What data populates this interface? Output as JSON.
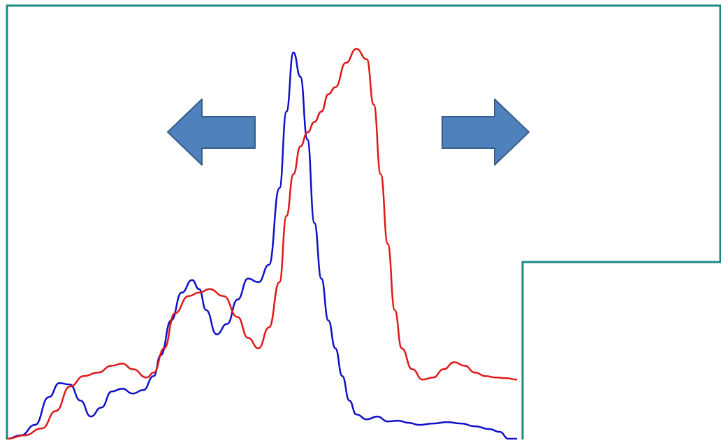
{
  "colors": {
    "frame": "#1a8a82",
    "series_a": "#1010c8",
    "series_b": "#e01818",
    "arrow_fill": "#4f81bd",
    "arrow_stroke": "#385d8a"
  },
  "icons": {
    "left": "arrow-left-icon",
    "right": "arrow-right-icon"
  },
  "chart_data": {
    "type": "line",
    "xlim": [
      0,
      730
    ],
    "ylim": [
      0,
      560
    ],
    "grid": false,
    "series": [
      {
        "color": "#1010c8",
        "x": [
          0,
          20,
          40,
          60,
          75,
          90,
          105,
          120,
          135,
          150,
          165,
          180,
          195,
          210,
          220,
          235,
          250,
          265,
          275,
          285,
          300,
          315,
          330,
          345,
          360,
          375,
          390,
          400,
          410,
          420,
          430,
          440,
          450,
          460,
          470,
          480,
          490,
          500,
          515,
          530,
          545,
          560,
          575,
          590,
          610,
          630,
          650,
          670,
          690,
          705,
          718,
          730
        ],
        "y": [
          0,
          5,
          20,
          60,
          80,
          78,
          55,
          32,
          45,
          68,
          72,
          65,
          70,
          90,
          120,
          170,
          210,
          228,
          215,
          185,
          150,
          165,
          200,
          230,
          225,
          250,
          360,
          470,
          555,
          520,
          430,
          310,
          230,
          170,
          130,
          90,
          55,
          35,
          28,
          32,
          25,
          26,
          23,
          20,
          22,
          24,
          22,
          18,
          14,
          10,
          0,
          0
        ]
      },
      {
        "color": "#e01818",
        "x": [
          0,
          25,
          50,
          70,
          90,
          110,
          130,
          150,
          165,
          180,
          200,
          210,
          225,
          240,
          260,
          275,
          290,
          310,
          330,
          345,
          360,
          375,
          390,
          400,
          410,
          420,
          430,
          440,
          450,
          460,
          470,
          485,
          500,
          515,
          525,
          535,
          545,
          555,
          565,
          580,
          595,
          610,
          625,
          640,
          655,
          670,
          685,
          700,
          715,
          730
        ],
        "y": [
          0,
          5,
          15,
          40,
          75,
          90,
          95,
          105,
          108,
          100,
          88,
          95,
          130,
          180,
          205,
          210,
          215,
          205,
          175,
          145,
          130,
          160,
          225,
          320,
          380,
          420,
          440,
          455,
          470,
          495,
          505,
          540,
          560,
          545,
          480,
          380,
          280,
          185,
          130,
          100,
          85,
          88,
          100,
          110,
          105,
          95,
          90,
          88,
          87,
          85
        ]
      }
    ]
  }
}
